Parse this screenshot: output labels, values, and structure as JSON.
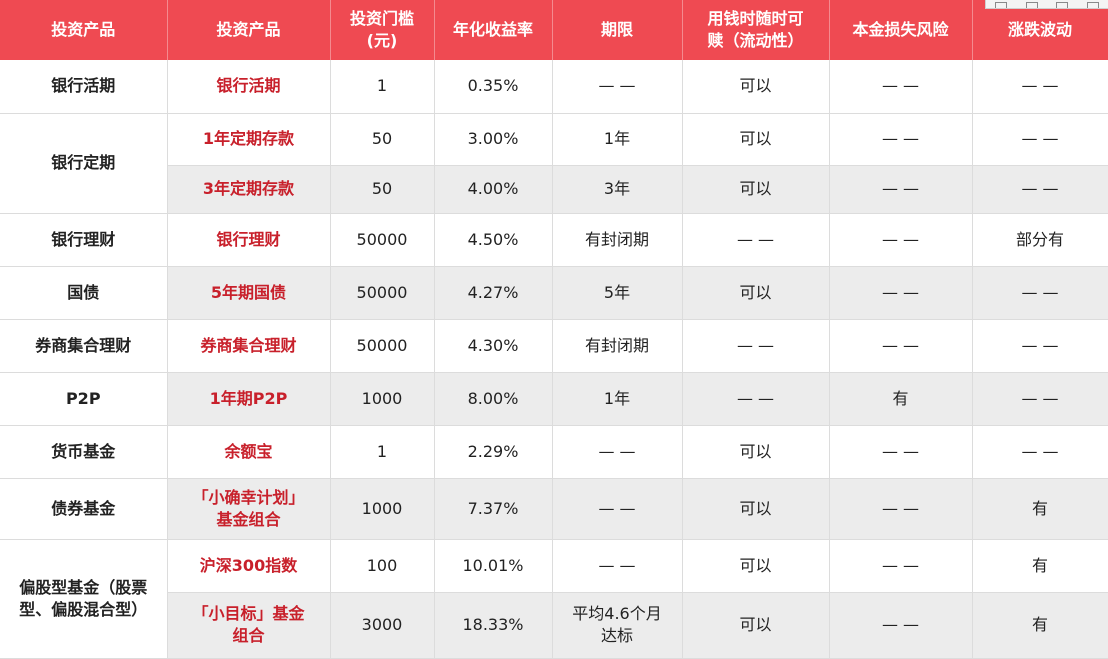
{
  "headers": [
    "投资产品",
    "投资产品",
    "投资门槛（元）",
    "年化收益率",
    "期限",
    "用钱时随时可赎（流动性）",
    "本金损失风险",
    "涨跌波动"
  ],
  "headers_display": {
    "h1": "投资产品",
    "h2": "投资产品",
    "h3a": "投资门槛",
    "h3b": "(元)",
    "h4": "年化收益率",
    "h5": "期限",
    "h6a": "用钱时随时可",
    "h6b": "赎（流动性）",
    "h7": "本金损失风险",
    "h8": "涨跌波动"
  },
  "categories": {
    "bank_demand": "银行活期",
    "bank_fixed": "银行定期",
    "bank_wealth": "银行理财",
    "treasury": "国债",
    "broker": "券商集合理财",
    "p2p": "P2P",
    "money_fund": "货币基金",
    "bond_fund": "债券基金",
    "equity_fund_a": "偏股型基金（股票",
    "equity_fund_b": "型、偏股混合型）"
  },
  "rows": [
    {
      "product": "银行活期",
      "threshold": "1",
      "rate": "0.35%",
      "term": "— —",
      "liquidity": "可以",
      "loss_risk": "— —",
      "volatility": "— —"
    },
    {
      "product": "1年定期存款",
      "threshold": "50",
      "rate": "3.00%",
      "term": "1年",
      "liquidity": "可以",
      "loss_risk": "— —",
      "volatility": "— —"
    },
    {
      "product": "3年定期存款",
      "threshold": "50",
      "rate": "4.00%",
      "term": "3年",
      "liquidity": "可以",
      "loss_risk": "— —",
      "volatility": "— —"
    },
    {
      "product": "银行理财",
      "threshold": "50000",
      "rate": "4.50%",
      "term": "有封闭期",
      "liquidity": "— —",
      "loss_risk": "— —",
      "volatility": "部分有"
    },
    {
      "product": "5年期国债",
      "threshold": "50000",
      "rate": "4.27%",
      "term": "5年",
      "liquidity": "可以",
      "loss_risk": "— —",
      "volatility": "— —"
    },
    {
      "product": "券商集合理财",
      "threshold": "50000",
      "rate": "4.30%",
      "term": "有封闭期",
      "liquidity": "— —",
      "loss_risk": "— —",
      "volatility": "— —"
    },
    {
      "product": "1年期P2P",
      "threshold": "1000",
      "rate": "8.00%",
      "term": "1年",
      "liquidity": "— —",
      "loss_risk": "有",
      "volatility": "— —"
    },
    {
      "product": "余额宝",
      "threshold": "1",
      "rate": "2.29%",
      "term": "— —",
      "liquidity": "可以",
      "loss_risk": "— —",
      "volatility": "— —"
    },
    {
      "product_a": "「小确幸计划」",
      "product_b": "基金组合",
      "threshold": "1000",
      "rate": "7.37%",
      "term": "— —",
      "liquidity": "可以",
      "loss_risk": "— —",
      "volatility": "有"
    },
    {
      "product": "沪深300指数",
      "threshold": "100",
      "rate": "10.01%",
      "term": "— —",
      "liquidity": "可以",
      "loss_risk": "— —",
      "volatility": "有"
    },
    {
      "product_a": "「小目标」基金",
      "product_b": "组合",
      "threshold": "3000",
      "rate": "18.33%",
      "term_a": "平均4.6个月",
      "term_b": "达标",
      "liquidity": "可以",
      "loss_risk": "— —",
      "volatility": "有"
    }
  ]
}
